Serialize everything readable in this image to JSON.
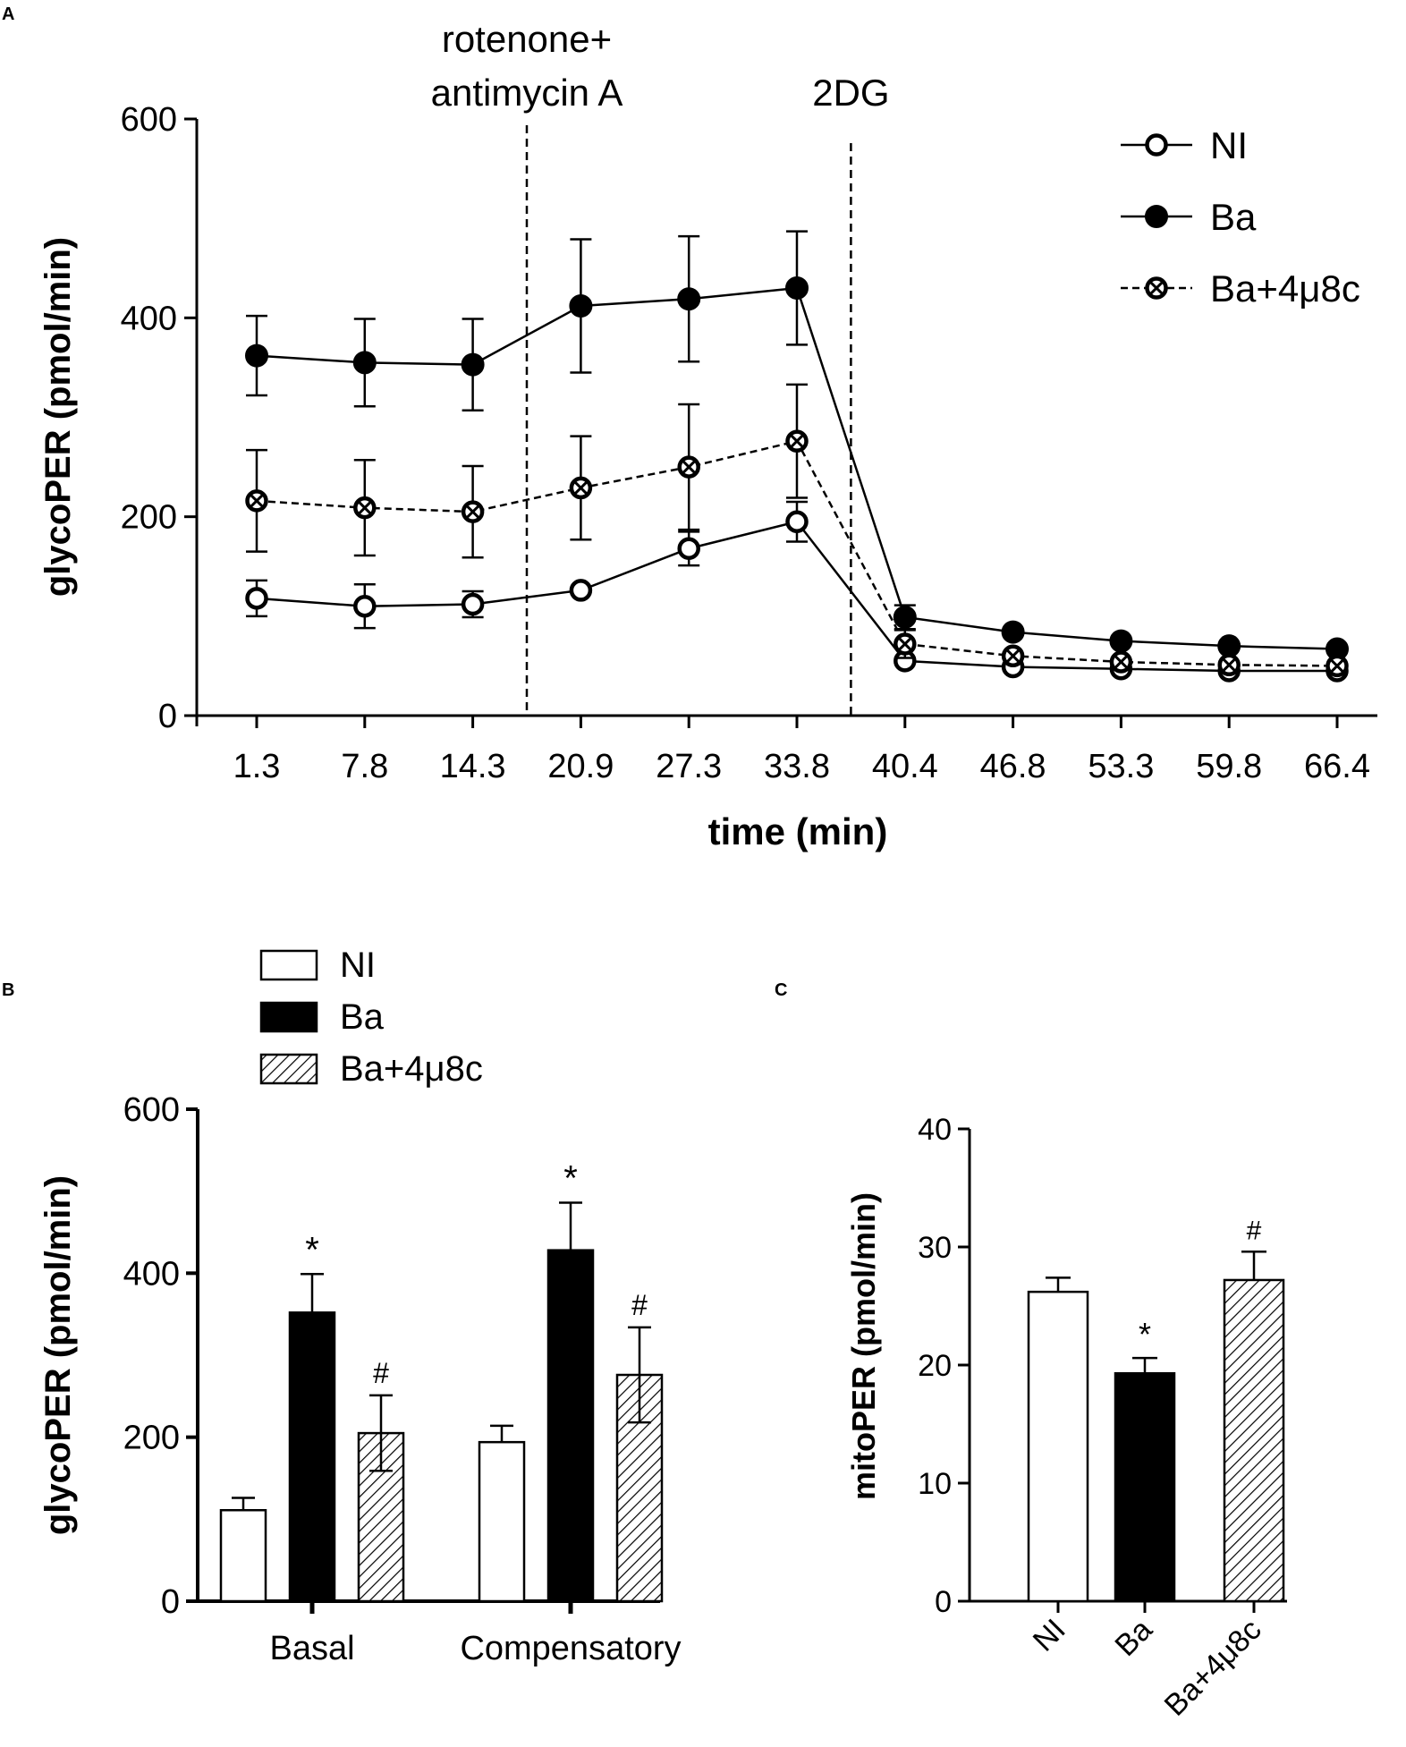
{
  "panel_labels": {
    "a": "A",
    "b": "B",
    "c": "C"
  },
  "chart_data": [
    {
      "id": "A",
      "type": "line",
      "title": "",
      "xlabel": "time (min)",
      "ylabel": "glycoPER (pmol/min)",
      "categories": [
        "1.3",
        "7.8",
        "14.3",
        "20.9",
        "27.3",
        "33.8",
        "40.4",
        "46.8",
        "53.3",
        "59.8",
        "66.4"
      ],
      "ylim": [
        0,
        600
      ],
      "yticks": [
        0,
        200,
        400,
        600
      ],
      "legend_position": "top-right",
      "annotations": [
        {
          "lines": [
            "rotenone+",
            "antimycin A"
          ],
          "after_category_index": 2
        },
        {
          "lines": [
            "2DG"
          ],
          "after_category_index": 5
        }
      ],
      "series": [
        {
          "name": "NI",
          "marker": "open-circle",
          "line": "solid",
          "values": [
            118,
            110,
            112,
            126,
            168,
            195,
            55,
            49,
            47,
            45,
            45
          ],
          "errors": [
            18,
            22,
            13,
            0,
            17,
            20,
            0,
            0,
            0,
            0,
            0
          ]
        },
        {
          "name": "Ba",
          "marker": "filled-circle",
          "line": "solid",
          "values": [
            362,
            355,
            353,
            412,
            419,
            430,
            99,
            84,
            75,
            70,
            67
          ],
          "errors": [
            40,
            44,
            46,
            67,
            63,
            57,
            12,
            0,
            0,
            0,
            0
          ]
        },
        {
          "name": "Ba+4μ8c",
          "marker": "crossed-circle",
          "line": "dashed",
          "values": [
            216,
            209,
            205,
            229,
            250,
            276,
            72,
            60,
            54,
            51,
            50
          ],
          "errors": [
            51,
            48,
            46,
            52,
            63,
            57,
            14,
            0,
            0,
            0,
            0
          ]
        }
      ]
    },
    {
      "id": "B",
      "type": "bar",
      "title": "",
      "xlabel": "",
      "ylabel": "glycoPER (pmol/min)",
      "categories": [
        "Basal",
        "Compensatory"
      ],
      "ylim": [
        0,
        600
      ],
      "yticks": [
        0,
        200,
        400,
        600
      ],
      "legend_position": "top",
      "series": [
        {
          "name": "NI",
          "fill": "open",
          "values": [
            111,
            194
          ],
          "errors": [
            15,
            20
          ],
          "marks": [
            "",
            ""
          ]
        },
        {
          "name": "Ba",
          "fill": "black",
          "values": [
            352,
            428
          ],
          "errors": [
            47,
            58
          ],
          "marks": [
            "*",
            "*"
          ]
        },
        {
          "name": "Ba+4μ8c",
          "fill": "hatched",
          "values": [
            205,
            276
          ],
          "errors": [
            46,
            58
          ],
          "marks": [
            "#",
            "#"
          ]
        }
      ]
    },
    {
      "id": "C",
      "type": "bar",
      "title": "",
      "xlabel": "",
      "ylabel": "mitoPER (pmol/min)",
      "categories": [
        "NI",
        "Ba",
        "Ba+4μ8c"
      ],
      "ylim": [
        0,
        40
      ],
      "yticks": [
        0,
        10,
        20,
        30,
        40
      ],
      "bars": [
        {
          "name": "NI",
          "fill": "open",
          "value": 26.2,
          "error": 1.2,
          "mark": ""
        },
        {
          "name": "Ba",
          "fill": "black",
          "value": 19.3,
          "error": 1.3,
          "mark": "*"
        },
        {
          "name": "Ba+4μ8c",
          "fill": "hatched",
          "value": 27.2,
          "error": 2.4,
          "mark": "#"
        }
      ]
    }
  ]
}
